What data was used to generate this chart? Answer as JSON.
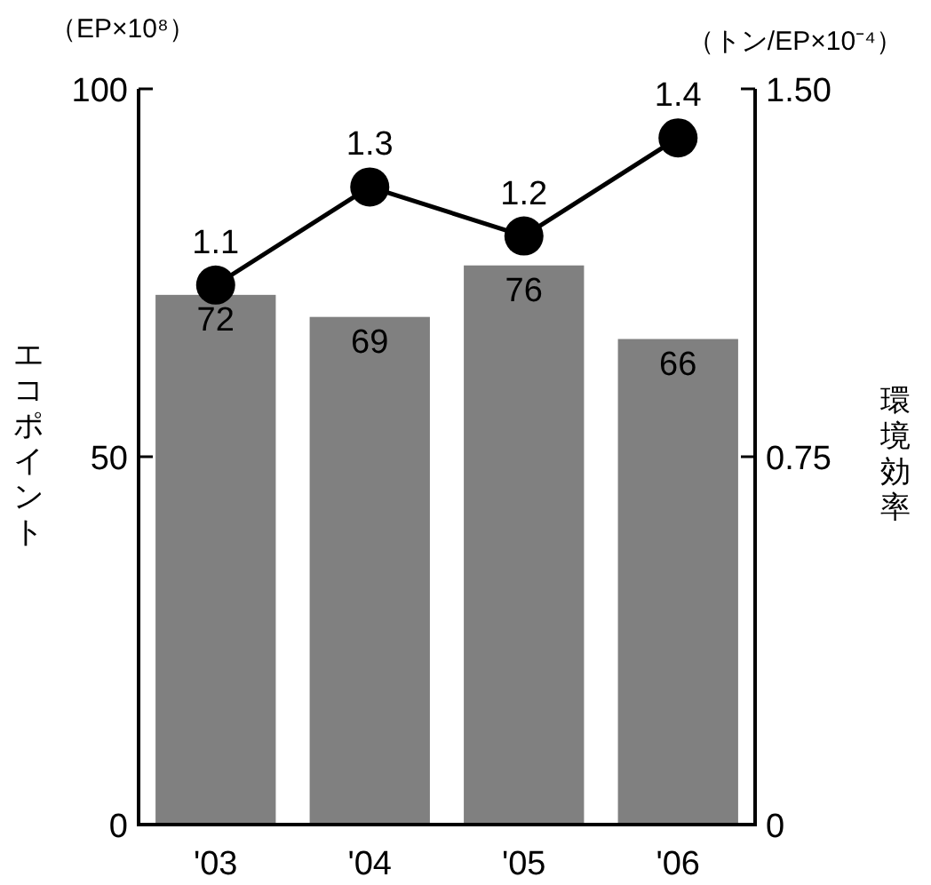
{
  "chart_data": {
    "type": "bar",
    "categories": [
      "'03",
      "'04",
      "'05",
      "'06"
    ],
    "ylabel": "エコポイント",
    "y2label": "環境効率",
    "annotations": [
      "（EP×10⁸）",
      "（トン/EP×10⁻⁴）"
    ],
    "ylim": [
      0,
      100
    ],
    "yticks": [
      0,
      50,
      100
    ],
    "y2lim": [
      0,
      1.5
    ],
    "y2ticks": [
      0,
      {
        "value": 0.75,
        "label": "0.75"
      },
      {
        "value": 1.5,
        "label": "1.50"
      }
    ],
    "data_labels": true,
    "grid": false,
    "series": [
      {
        "color": "#808080",
        "values": [
          72,
          69,
          76,
          66
        ]
      },
      {
        "type": "line",
        "axis": "y2",
        "color": "#000000",
        "marker": "circle",
        "line_style": "solid",
        "values": [
          1.1,
          1.3,
          1.2,
          1.4
        ]
      }
    ]
  }
}
